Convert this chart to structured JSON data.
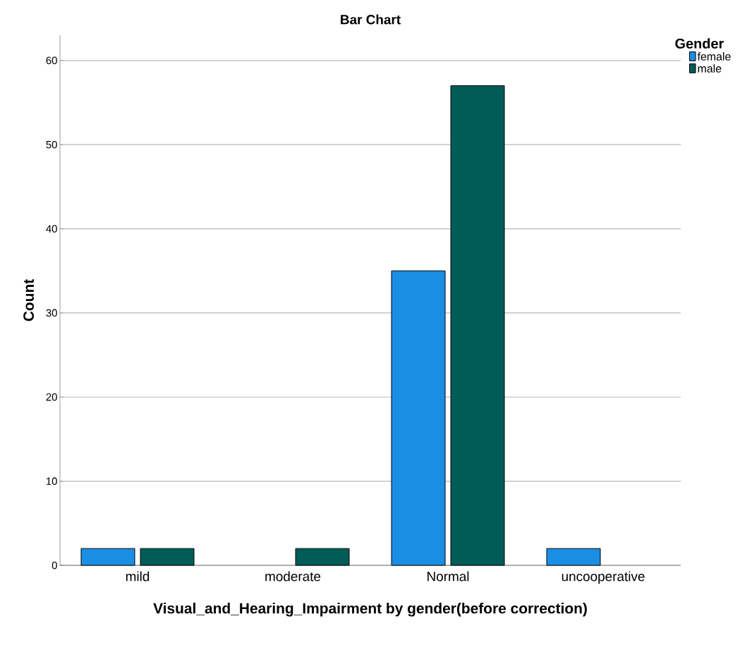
{
  "chart_data": {
    "type": "bar",
    "title": "Bar Chart",
    "xlabel": "Visual_and_Hearing_Impairment by gender(before correction)",
    "ylabel": "Count",
    "legend_title": "Gender",
    "categories": [
      "mild",
      "moderate",
      "Normal",
      "uncooperative"
    ],
    "series": [
      {
        "name": "female",
        "color": "#1a8ee3",
        "values": [
          2,
          null,
          35,
          2
        ]
      },
      {
        "name": "male",
        "color": "#015c58",
        "values": [
          2,
          2,
          57,
          null
        ]
      }
    ],
    "ylim": [
      0,
      63
    ],
    "yticks": [
      0,
      10,
      20,
      30,
      40,
      50,
      60
    ],
    "grid": "y",
    "legend": "top right"
  }
}
